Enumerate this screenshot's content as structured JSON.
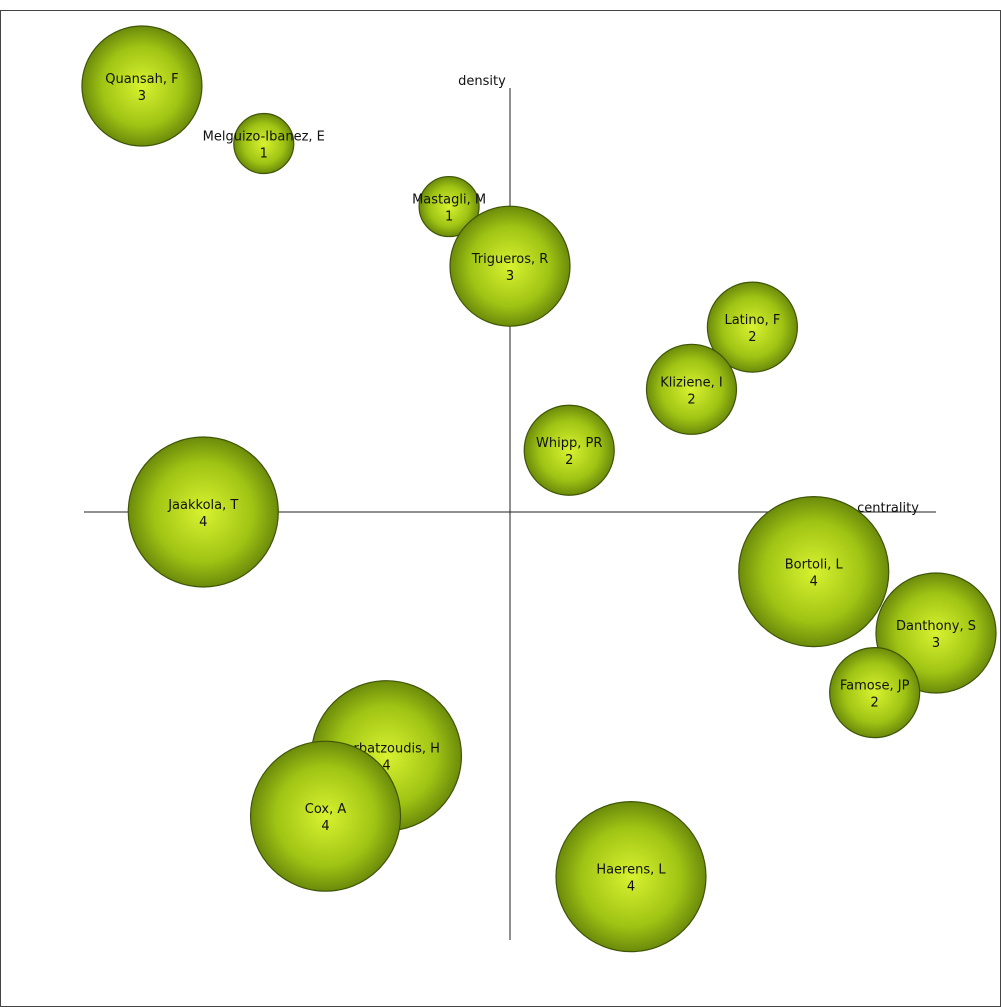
{
  "chart_data": {
    "type": "scatter",
    "title": "",
    "xlabel": "centrality",
    "ylabel": "density",
    "xlim": [
      -1,
      1
    ],
    "ylim": [
      -1,
      1
    ],
    "grid": false,
    "legend": "none",
    "bubble_color": "#a0c414",
    "bubble_dark": "#5c7a08",
    "bubble_light": "#d8f230",
    "points": [
      {
        "label": "Quansah, F",
        "value": 3,
        "x": -0.864,
        "y": 1.0
      },
      {
        "label": "Melguizo-Ibanez, E",
        "value": 1,
        "x": -0.578,
        "y": 0.865
      },
      {
        "label": "Mastagli, M",
        "value": 1,
        "x": -0.143,
        "y": 0.717
      },
      {
        "label": "Trigueros, R",
        "value": 3,
        "x": 0.0,
        "y": 0.577
      },
      {
        "label": "Latino, F",
        "value": 2,
        "x": 0.569,
        "y": 0.434
      },
      {
        "label": "Kliziene, I",
        "value": 2,
        "x": 0.426,
        "y": 0.288
      },
      {
        "label": "Whipp, PR",
        "value": 2,
        "x": 0.139,
        "y": 0.145
      },
      {
        "label": "Jaakkola, T",
        "value": 4,
        "x": -0.72,
        "y": 0.0
      },
      {
        "label": "Bortoli, L",
        "value": 4,
        "x": 0.713,
        "y": -0.14
      },
      {
        "label": "Danthony, S",
        "value": 3,
        "x": 1.0,
        "y": -0.284
      },
      {
        "label": "Famose, JP",
        "value": 2,
        "x": 0.856,
        "y": -0.424
      },
      {
        "label": "Tsorbatzoudis, H",
        "value": 4,
        "x": -0.29,
        "y": -0.572
      },
      {
        "label": "Cox, A",
        "value": 4,
        "x": -0.433,
        "y": -0.714
      },
      {
        "label": "Haerens, L",
        "value": 4,
        "x": 0.284,
        "y": -0.856
      }
    ]
  }
}
